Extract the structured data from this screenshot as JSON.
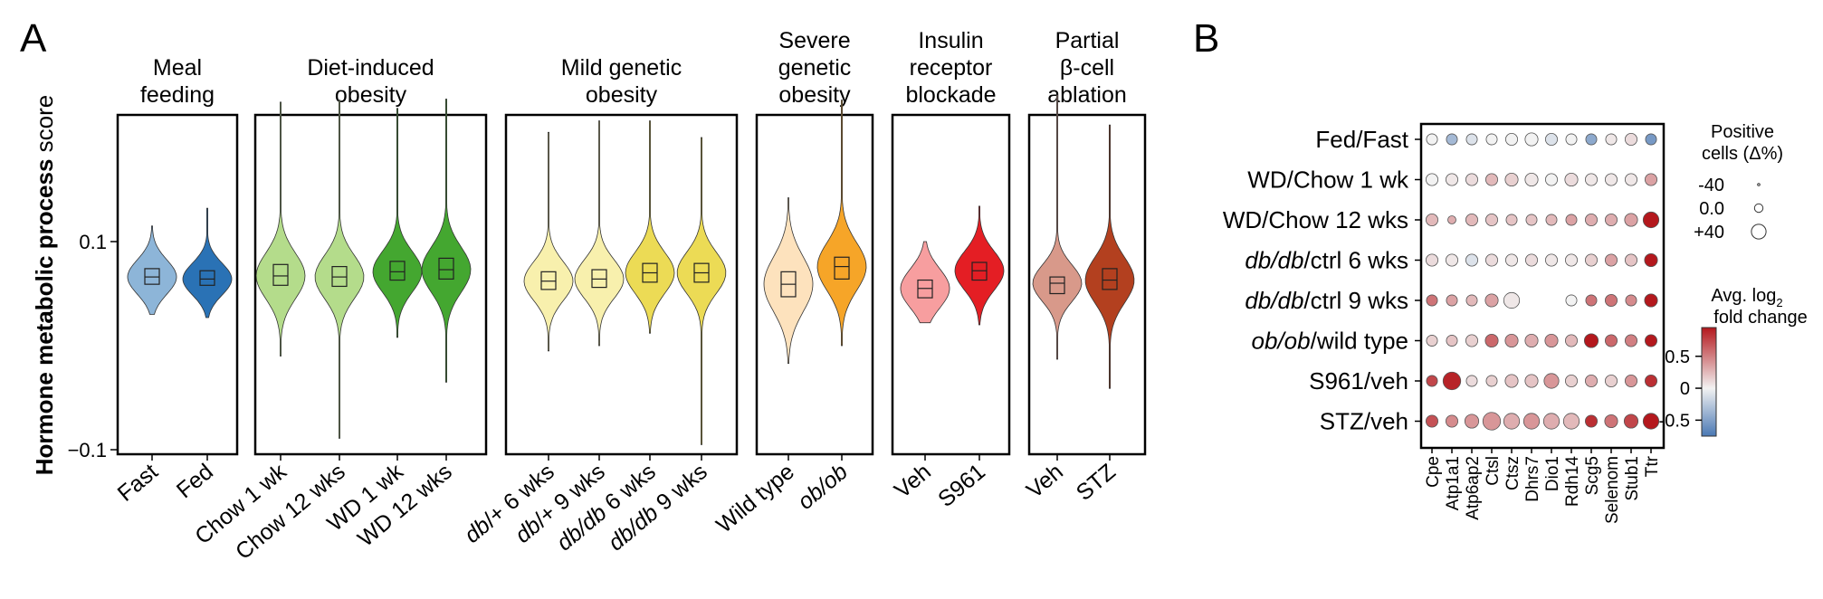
{
  "panels": {
    "a": "A",
    "b": "B"
  },
  "chart_data": [
    {
      "type": "violin",
      "ylabel_bold": "Hormone metabolic process",
      "ylabel_rest": " score",
      "ylim": [
        -0.1,
        0.2
      ],
      "yticks": [
        {
          "value": 0.1,
          "label": "0.1"
        },
        {
          "value": -0.1,
          "label": "−0.1"
        }
      ],
      "groups": [
        {
          "title_lines": [
            "Meal",
            "feeding"
          ],
          "violins": [
            {
              "label_parts": [
                {
                  "text": "Fast"
                }
              ],
              "color": "#8db5d8",
              "min": 0.03,
              "max": 0.115,
              "q1": 0.059,
              "median": 0.066,
              "q3": 0.074
            },
            {
              "label_parts": [
                {
                  "text": "Fed"
                }
              ],
              "color": "#2a72b5",
              "min": 0.027,
              "max": 0.132,
              "q1": 0.058,
              "median": 0.064,
              "q3": 0.072
            }
          ]
        },
        {
          "title_lines": [
            "Diet-induced",
            "obesity"
          ],
          "violins": [
            {
              "label_parts": [
                {
                  "text": "Chow 1 wk"
                }
              ],
              "color": "#b4dc8b",
              "min": -0.01,
              "max": 0.234,
              "q1": 0.058,
              "median": 0.067,
              "q3": 0.078
            },
            {
              "label_parts": [
                {
                  "text": "Chow 12 wks"
                }
              ],
              "color": "#b4dc8b",
              "min": -0.089,
              "max": 0.236,
              "q1": 0.057,
              "median": 0.066,
              "q3": 0.076
            },
            {
              "label_parts": [
                {
                  "text": "WD 1 wk"
                }
              ],
              "color": "#44a730",
              "min": 0.008,
              "max": 0.228,
              "q1": 0.063,
              "median": 0.071,
              "q3": 0.081
            },
            {
              "label_parts": [
                {
                  "text": "WD 12 wks"
                }
              ],
              "color": "#44a730",
              "min": -0.035,
              "max": 0.237,
              "q1": 0.064,
              "median": 0.073,
              "q3": 0.084
            }
          ]
        },
        {
          "title_lines": [
            "Mild genetic",
            "obesity"
          ],
          "violins": [
            {
              "label_parts": [
                {
                  "text": "db",
                  "italic": true
                },
                {
                  "text": "/+ 6 wks"
                }
              ],
              "color": "#f8f0ad",
              "min": -0.005,
              "max": 0.205,
              "q1": 0.054,
              "median": 0.062,
              "q3": 0.071
            },
            {
              "label_parts": [
                {
                  "text": "db",
                  "italic": true
                },
                {
                  "text": "/+ 9 wks"
                }
              ],
              "color": "#f8f0ad",
              "min": 0.0,
              "max": 0.216,
              "q1": 0.056,
              "median": 0.064,
              "q3": 0.073
            },
            {
              "label_parts": [
                {
                  "text": "db/db",
                  "italic": true
                },
                {
                  "text": " 6 wks"
                }
              ],
              "color": "#ecdb55",
              "min": 0.012,
              "max": 0.216,
              "q1": 0.061,
              "median": 0.07,
              "q3": 0.079
            },
            {
              "label_parts": [
                {
                  "text": "db/db",
                  "italic": true
                },
                {
                  "text": " 9 wks"
                }
              ],
              "color": "#ecdb55",
              "min": -0.095,
              "max": 0.2,
              "q1": 0.061,
              "median": 0.07,
              "q3": 0.079
            }
          ]
        },
        {
          "title_lines": [
            "Severe",
            "genetic",
            "obesity"
          ],
          "violins": [
            {
              "label_parts": [
                {
                  "text": "Wild type"
                }
              ],
              "color": "#fde2bd",
              "min": -0.017,
              "max": 0.142,
              "q1": 0.047,
              "median": 0.059,
              "q3": 0.071
            },
            {
              "label_parts": [
                {
                  "text": "ob/ob",
                  "italic": true
                }
              ],
              "color": "#f6a528",
              "min": 0.0,
              "max": 0.236,
              "q1": 0.064,
              "median": 0.076,
              "q3": 0.085
            }
          ]
        },
        {
          "title_lines": [
            "Insulin",
            "receptor",
            "blockade"
          ],
          "violins": [
            {
              "label_parts": [
                {
                  "text": "Veh"
                }
              ],
              "color": "#f79e9f",
              "min": 0.022,
              "max": 0.1,
              "q1": 0.046,
              "median": 0.055,
              "q3": 0.063
            },
            {
              "label_parts": [
                {
                  "text": "S961"
                }
              ],
              "color": "#e41e24",
              "min": 0.02,
              "max": 0.134,
              "q1": 0.063,
              "median": 0.072,
              "q3": 0.08
            }
          ]
        },
        {
          "title_lines": [
            "Partial",
            "β-cell",
            "ablation"
          ],
          "violins": [
            {
              "label_parts": [
                {
                  "text": "Veh"
                }
              ],
              "color": "#d8998a",
              "min": -0.013,
              "max": 0.241,
              "q1": 0.05,
              "median": 0.06,
              "q3": 0.066
            },
            {
              "label_parts": [
                {
                  "text": "STZ"
                }
              ],
              "color": "#b3401f",
              "min": -0.041,
              "max": 0.212,
              "q1": 0.054,
              "median": 0.063,
              "q3": 0.074
            }
          ]
        }
      ]
    },
    {
      "type": "dot-heatmap",
      "rows": [
        [
          {
            "text": "Fed/Fast"
          }
        ],
        [
          {
            "text": "WD/Chow 1 wk"
          }
        ],
        [
          {
            "text": "WD/Chow 12 wks"
          }
        ],
        [
          {
            "text": "db/db",
            "italic": true
          },
          {
            "text": "/ctrl 6 wks"
          }
        ],
        [
          {
            "text": "db/db",
            "italic": true
          },
          {
            "text": "/ctrl 9 wks"
          }
        ],
        [
          {
            "text": "ob/ob",
            "italic": true
          },
          {
            "text": "/wild type"
          }
        ],
        [
          {
            "text": "S961/veh"
          }
        ],
        [
          {
            "text": "STZ/veh"
          }
        ]
      ],
      "genes": [
        "Cpe",
        "Atp1a1",
        "Atp6ap2",
        "Ctsl",
        "Ctsz",
        "Dhrs7",
        "Dio1",
        "Rdh14",
        "Scg5",
        "Selenom",
        "Stub1",
        "Ttr"
      ],
      "fold_change": [
        [
          0.0,
          -0.35,
          -0.1,
          0.0,
          0.0,
          0.0,
          -0.1,
          0.0,
          -0.45,
          0.05,
          0.1,
          -0.55
        ],
        [
          0.0,
          0.05,
          0.1,
          0.25,
          0.15,
          0.05,
          0.0,
          0.1,
          0.05,
          0.05,
          0.05,
          0.35
        ],
        [
          0.25,
          0.3,
          0.25,
          0.2,
          0.2,
          0.2,
          0.25,
          0.35,
          0.3,
          0.3,
          0.35,
          1.0
        ],
        [
          0.1,
          0.05,
          -0.1,
          0.1,
          0.05,
          0.1,
          0.05,
          0.05,
          0.15,
          0.35,
          0.2,
          0.95
        ],
        [
          0.55,
          0.35,
          0.25,
          0.35,
          0.05,
          0.3,
          null,
          0.0,
          0.55,
          0.55,
          0.45,
          0.95
        ],
        [
          0.15,
          0.2,
          0.15,
          0.6,
          0.4,
          0.3,
          0.4,
          0.25,
          1.0,
          0.6,
          0.5,
          0.95
        ],
        [
          0.75,
          0.9,
          0.1,
          0.15,
          0.2,
          0.2,
          0.4,
          0.15,
          0.3,
          0.15,
          0.4,
          0.85
        ],
        [
          0.7,
          0.45,
          0.4,
          0.4,
          0.3,
          0.4,
          0.3,
          0.25,
          0.85,
          0.55,
          0.75,
          1.0
        ]
      ],
      "delta_percent": [
        [
          -5,
          -5,
          -5,
          -5,
          0,
          5,
          0,
          -5,
          -5,
          -5,
          0,
          -5
        ],
        [
          0,
          0,
          0,
          0,
          5,
          5,
          0,
          5,
          0,
          0,
          0,
          0
        ],
        [
          0,
          -20,
          0,
          0,
          -5,
          -5,
          -5,
          -5,
          0,
          0,
          5,
          20
        ],
        [
          0,
          0,
          0,
          0,
          0,
          0,
          0,
          0,
          0,
          0,
          0,
          5
        ],
        [
          -5,
          -5,
          -5,
          5,
          20,
          null,
          -5,
          -5,
          -5,
          0,
          -5,
          5
        ],
        [
          -5,
          -5,
          0,
          5,
          5,
          5,
          5,
          0,
          10,
          0,
          0,
          0
        ],
        [
          -5,
          30,
          -5,
          -5,
          5,
          5,
          15,
          0,
          0,
          0,
          0,
          0
        ],
        [
          0,
          0,
          10,
          30,
          20,
          20,
          20,
          20,
          0,
          5,
          10,
          20
        ]
      ],
      "size_legend": {
        "title_lines": [
          "Positive",
          "cells (Δ%)"
        ],
        "entries": [
          {
            "value": -40,
            "label": "-40"
          },
          {
            "value": 0,
            "label": "0.0"
          },
          {
            "value": 40,
            "label": "+40"
          }
        ]
      },
      "color_legend": {
        "title_line1": "Avg. log",
        "title_sub": "2",
        "title_line2": "fold change",
        "range": [
          -0.75,
          0.95
        ],
        "ticks": [
          {
            "value": 0.5,
            "label": "0.5"
          },
          {
            "value": 0,
            "label": "0"
          },
          {
            "value": -0.5,
            "label": "-0.5"
          }
        ],
        "colors": {
          "neg": "#4a78b4",
          "mid": "#f2f2f2",
          "pos": "#b4181d"
        }
      }
    }
  ]
}
